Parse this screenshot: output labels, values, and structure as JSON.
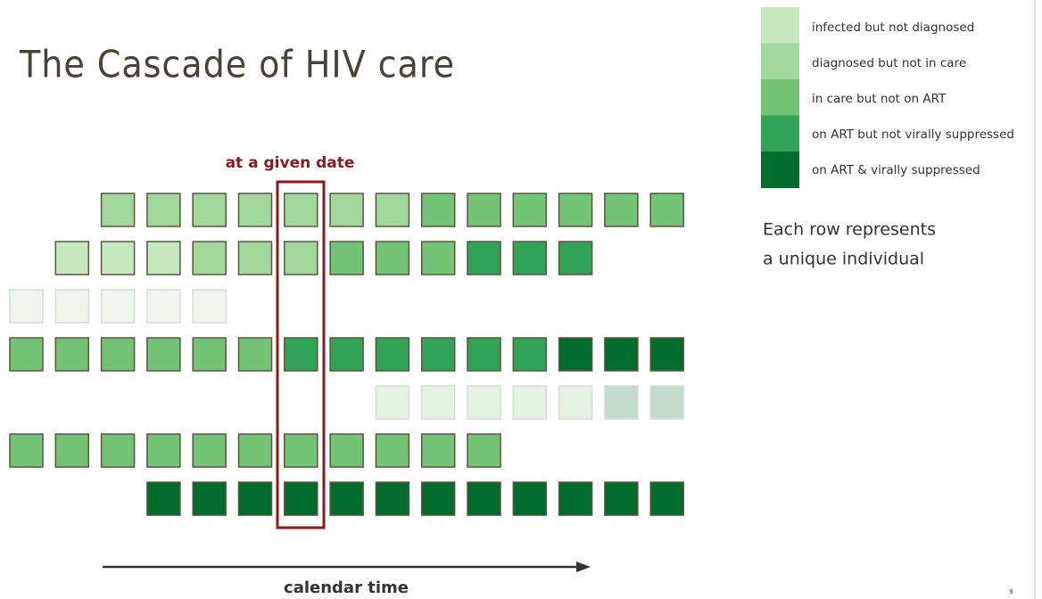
{
  "title": "The Cascade of HIV care",
  "annotation": "at a given date",
  "legend": [
    "infected but not diagnosed",
    "diagnosed but not in care",
    "in care but not on ART",
    "on ART but not virally suppressed",
    "on ART & virally suppressed"
  ],
  "note": [
    "Each row represents",
    "a unique individual"
  ],
  "axis_label": "calendar time",
  "page_number": "9"
}
